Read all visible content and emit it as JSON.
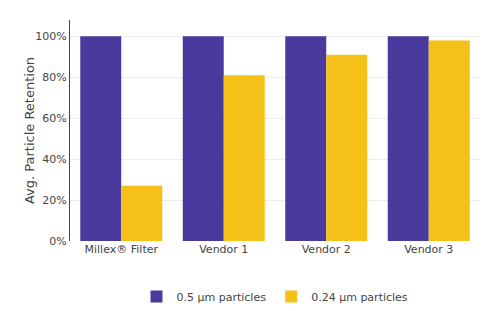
{
  "chart_data": {
    "type": "bar",
    "categories": [
      "Millex® Filter",
      "Vendor 1",
      "Vendor 2",
      "Vendor 3"
    ],
    "series": [
      {
        "name": "0.5 μm particles",
        "color": "#4B3A9E",
        "values": [
          100,
          100,
          100,
          100
        ]
      },
      {
        "name": "0.24 μm particles",
        "color": "#F5C018",
        "values": [
          27,
          81,
          91,
          98
        ]
      }
    ],
    "ylabel": "Avg. Particle Retention",
    "ylim": [
      0,
      108
    ],
    "yticks": [
      {
        "value": 0,
        "label": "0%"
      },
      {
        "value": 20,
        "label": "20%"
      },
      {
        "value": 40,
        "label": "40%"
      },
      {
        "value": 60,
        "label": "60%"
      },
      {
        "value": 80,
        "label": "80%"
      },
      {
        "value": 100,
        "label": "100%"
      }
    ],
    "grid": true,
    "legend": "bottom"
  }
}
